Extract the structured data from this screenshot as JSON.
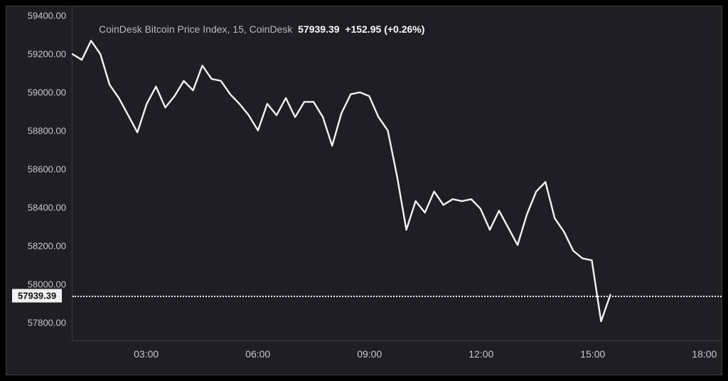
{
  "chart": {
    "type": "line",
    "title_prefix": "CoinDesk Bitcoin Price Index, 15, CoinDesk",
    "last_price": "57939.39",
    "change_abs": "+152.95",
    "change_pct": "(+0.26%)",
    "background_color": "#1e1e24",
    "border_color": "#3a3a42",
    "text_color": "#c8c8cc",
    "line_color": "#f4f4f4",
    "line_width": 2.4,
    "price_line_value": 57939.39,
    "price_tag_bg": "#f0f0f0",
    "price_tag_fg": "#111111",
    "y_axis": {
      "min": 57700,
      "max": 59450,
      "ticks": [
        {
          "v": 59400,
          "label": "59400.00"
        },
        {
          "v": 59200,
          "label": "59200.00"
        },
        {
          "v": 59000,
          "label": "59000.00"
        },
        {
          "v": 58800,
          "label": "58800.00"
        },
        {
          "v": 58600,
          "label": "58600.00"
        },
        {
          "v": 58400,
          "label": "58400.00"
        },
        {
          "v": 58200,
          "label": "58200.00"
        },
        {
          "v": 58000,
          "label": "58000.00"
        },
        {
          "v": 57800,
          "label": "57800.00"
        }
      ],
      "label_fontsize": 13
    },
    "x_axis": {
      "min": 1.0,
      "max": 18.5,
      "ticks": [
        {
          "v": 3,
          "label": "03:00"
        },
        {
          "v": 6,
          "label": "06:00"
        },
        {
          "v": 9,
          "label": "09:00"
        },
        {
          "v": 12,
          "label": "12:00"
        },
        {
          "v": 15,
          "label": "15:00"
        },
        {
          "v": 18,
          "label": "18:00"
        }
      ],
      "label_fontsize": 14
    },
    "series": [
      {
        "x": 1.0,
        "y": 59200
      },
      {
        "x": 1.25,
        "y": 59170
      },
      {
        "x": 1.5,
        "y": 59270
      },
      {
        "x": 1.75,
        "y": 59200
      },
      {
        "x": 2.0,
        "y": 59040
      },
      {
        "x": 2.25,
        "y": 58970
      },
      {
        "x": 2.5,
        "y": 58880
      },
      {
        "x": 2.75,
        "y": 58790
      },
      {
        "x": 3.0,
        "y": 58940
      },
      {
        "x": 3.25,
        "y": 59030
      },
      {
        "x": 3.5,
        "y": 58920
      },
      {
        "x": 3.75,
        "y": 58980
      },
      {
        "x": 4.0,
        "y": 59060
      },
      {
        "x": 4.25,
        "y": 59010
      },
      {
        "x": 4.5,
        "y": 59140
      },
      {
        "x": 4.75,
        "y": 59070
      },
      {
        "x": 5.0,
        "y": 59060
      },
      {
        "x": 5.25,
        "y": 58990
      },
      {
        "x": 5.5,
        "y": 58940
      },
      {
        "x": 5.75,
        "y": 58880
      },
      {
        "x": 6.0,
        "y": 58800
      },
      {
        "x": 6.25,
        "y": 58940
      },
      {
        "x": 6.5,
        "y": 58880
      },
      {
        "x": 6.75,
        "y": 58970
      },
      {
        "x": 7.0,
        "y": 58870
      },
      {
        "x": 7.25,
        "y": 58950
      },
      {
        "x": 7.5,
        "y": 58950
      },
      {
        "x": 7.75,
        "y": 58870
      },
      {
        "x": 8.0,
        "y": 58720
      },
      {
        "x": 8.25,
        "y": 58890
      },
      {
        "x": 8.5,
        "y": 58990
      },
      {
        "x": 8.75,
        "y": 59000
      },
      {
        "x": 9.0,
        "y": 58980
      },
      {
        "x": 9.25,
        "y": 58870
      },
      {
        "x": 9.5,
        "y": 58800
      },
      {
        "x": 9.75,
        "y": 58560
      },
      {
        "x": 10.0,
        "y": 58280
      },
      {
        "x": 10.25,
        "y": 58430
      },
      {
        "x": 10.5,
        "y": 58370
      },
      {
        "x": 10.75,
        "y": 58480
      },
      {
        "x": 11.0,
        "y": 58410
      },
      {
        "x": 11.25,
        "y": 58440
      },
      {
        "x": 11.5,
        "y": 58430
      },
      {
        "x": 11.75,
        "y": 58440
      },
      {
        "x": 12.0,
        "y": 58390
      },
      {
        "x": 12.25,
        "y": 58280
      },
      {
        "x": 12.5,
        "y": 58380
      },
      {
        "x": 12.75,
        "y": 58290
      },
      {
        "x": 13.0,
        "y": 58200
      },
      {
        "x": 13.25,
        "y": 58360
      },
      {
        "x": 13.5,
        "y": 58480
      },
      {
        "x": 13.75,
        "y": 58530
      },
      {
        "x": 14.0,
        "y": 58340
      },
      {
        "x": 14.25,
        "y": 58270
      },
      {
        "x": 14.5,
        "y": 58170
      },
      {
        "x": 14.75,
        "y": 58130
      },
      {
        "x": 15.0,
        "y": 58120
      },
      {
        "x": 15.25,
        "y": 57800
      },
      {
        "x": 15.5,
        "y": 57939
      }
    ]
  }
}
